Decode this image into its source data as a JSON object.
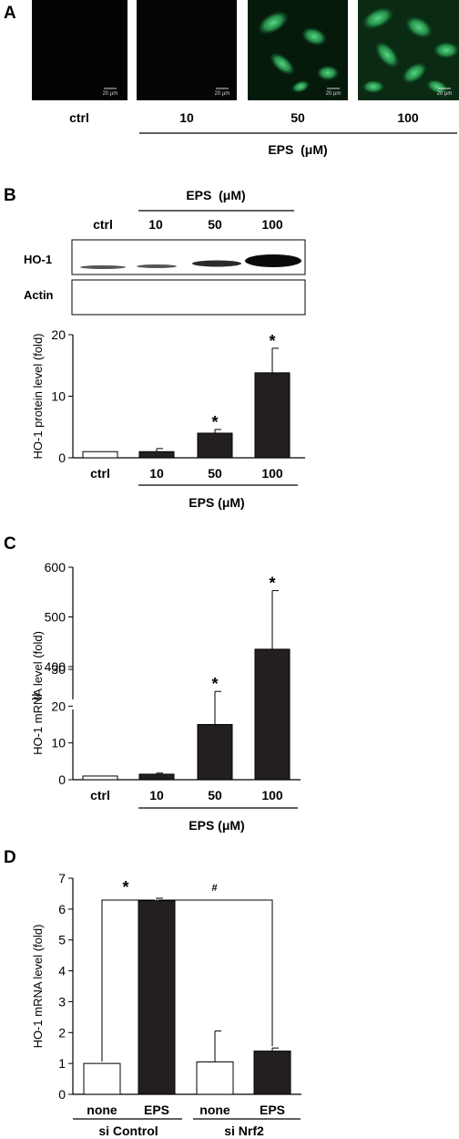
{
  "panels": {
    "A": {
      "letter": "A",
      "conditions": [
        "ctrl",
        "10",
        "50",
        "100"
      ],
      "group_label": "EPS  (μM)",
      "scale_bar": "20 μm"
    },
    "B": {
      "letter": "B",
      "blot_group_label": "EPS  (μM)",
      "blot_conditions": [
        "ctrl",
        "10",
        "50",
        "100"
      ],
      "blot_rows": [
        "HO-1",
        "Actin"
      ]
    },
    "C": {
      "letter": "C"
    },
    "D": {
      "letter": "D"
    }
  },
  "chart_data": [
    {
      "panel": "B",
      "type": "bar",
      "ylabel": "HO-1 protein level (fold)",
      "ylim": [
        0,
        20
      ],
      "yticks": [
        0,
        10,
        20
      ],
      "categories": [
        "ctrl",
        "10",
        "50",
        "100"
      ],
      "values": [
        1.0,
        1.0,
        4.0,
        13.8
      ],
      "errors": [
        0,
        0.5,
        0.6,
        4.0
      ],
      "fills": [
        "#ffffff",
        "#231f20",
        "#231f20",
        "#231f20"
      ],
      "significance": [
        "",
        "",
        "*",
        "*"
      ],
      "group_label": "EPS  (μM)"
    },
    {
      "panel": "C",
      "type": "bar",
      "ylabel": "HO-1 mRNA level (fold)",
      "axis_break": "≈",
      "yticks_lower": [
        0,
        10,
        20,
        30
      ],
      "yticks_upper": [
        400,
        500,
        600
      ],
      "categories": [
        "ctrl",
        "10",
        "50",
        "100"
      ],
      "values": [
        1.0,
        1.5,
        15.0,
        435
      ],
      "errors": [
        0,
        0.3,
        9.0,
        118
      ],
      "fills": [
        "#ffffff",
        "#231f20",
        "#231f20",
        "#231f20"
      ],
      "significance": [
        "",
        "",
        "*",
        "*"
      ],
      "group_label": "EPS  (μM)"
    },
    {
      "panel": "D",
      "type": "bar",
      "ylabel": "HO-1 mRNA level (fold)",
      "ylim": [
        0,
        7
      ],
      "yticks": [
        0,
        1,
        2,
        3,
        4,
        5,
        6,
        7
      ],
      "categories": [
        "none",
        "EPS",
        "none",
        "EPS"
      ],
      "values": [
        1.0,
        6.27,
        1.05,
        1.4
      ],
      "errors": [
        0,
        0.08,
        1.0,
        0.1
      ],
      "fills": [
        "#ffffff",
        "#231f20",
        "#ffffff",
        "#231f20"
      ],
      "groups": [
        "si Control",
        "si Nrf2"
      ],
      "brackets": [
        {
          "from": 0,
          "to": 1,
          "symbol": "*"
        },
        {
          "from": 1,
          "to": 3,
          "symbol": "#"
        }
      ]
    }
  ]
}
